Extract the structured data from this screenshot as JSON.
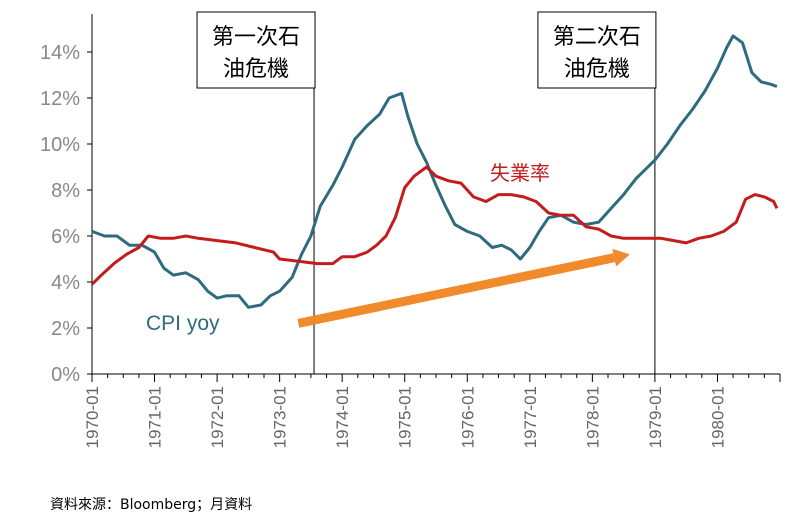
{
  "chart_data": {
    "type": "line",
    "ylim": [
      0,
      15
    ],
    "y_ticks": [
      "0%",
      "2%",
      "4%",
      "6%",
      "8%",
      "10%",
      "12%",
      "14%"
    ],
    "y_tick_values": [
      0,
      2,
      4,
      6,
      8,
      10,
      12,
      14
    ],
    "x_tick_labels": [
      "1970-01",
      "1971-01",
      "1972-01",
      "1973-01",
      "1974-01",
      "1975-01",
      "1976-01",
      "1977-01",
      "1978-01",
      "1979-01",
      "1980-01"
    ],
    "x_tick_values": [
      1970,
      1971,
      1972,
      1973,
      1974,
      1975,
      1976,
      1977,
      1978,
      1979,
      1980
    ],
    "xlim": [
      1970,
      1980.95
    ],
    "grid": false,
    "series": [
      {
        "name": "CPI yoy",
        "color": "#2e6b7e",
        "points": [
          [
            1970.0,
            6.2
          ],
          [
            1970.2,
            6.0
          ],
          [
            1970.4,
            6.0
          ],
          [
            1970.6,
            5.6
          ],
          [
            1970.8,
            5.6
          ],
          [
            1971.0,
            5.3
          ],
          [
            1971.15,
            4.6
          ],
          [
            1971.3,
            4.3
          ],
          [
            1971.5,
            4.4
          ],
          [
            1971.7,
            4.1
          ],
          [
            1971.85,
            3.6
          ],
          [
            1972.0,
            3.3
          ],
          [
            1972.15,
            3.4
          ],
          [
            1972.35,
            3.4
          ],
          [
            1972.5,
            2.9
          ],
          [
            1972.7,
            3.0
          ],
          [
            1972.85,
            3.4
          ],
          [
            1973.0,
            3.6
          ],
          [
            1973.2,
            4.2
          ],
          [
            1973.35,
            5.2
          ],
          [
            1973.5,
            6.0
          ],
          [
            1973.65,
            7.3
          ],
          [
            1973.85,
            8.2
          ],
          [
            1974.0,
            9.0
          ],
          [
            1974.2,
            10.2
          ],
          [
            1974.4,
            10.8
          ],
          [
            1974.6,
            11.3
          ],
          [
            1974.75,
            12.0
          ],
          [
            1974.95,
            12.2
          ],
          [
            1975.05,
            11.2
          ],
          [
            1975.2,
            10.0
          ],
          [
            1975.35,
            9.2
          ],
          [
            1975.5,
            8.2
          ],
          [
            1975.65,
            7.3
          ],
          [
            1975.8,
            6.5
          ],
          [
            1976.0,
            6.2
          ],
          [
            1976.2,
            6.0
          ],
          [
            1976.4,
            5.5
          ],
          [
            1976.55,
            5.6
          ],
          [
            1976.7,
            5.4
          ],
          [
            1976.85,
            5.0
          ],
          [
            1977.0,
            5.5
          ],
          [
            1977.15,
            6.2
          ],
          [
            1977.3,
            6.8
          ],
          [
            1977.5,
            6.9
          ],
          [
            1977.7,
            6.6
          ],
          [
            1977.9,
            6.5
          ],
          [
            1978.1,
            6.6
          ],
          [
            1978.3,
            7.2
          ],
          [
            1978.5,
            7.8
          ],
          [
            1978.7,
            8.5
          ],
          [
            1978.85,
            8.9
          ],
          [
            1979.0,
            9.3
          ],
          [
            1979.2,
            10.0
          ],
          [
            1979.4,
            10.8
          ],
          [
            1979.6,
            11.5
          ],
          [
            1979.8,
            12.3
          ],
          [
            1980.0,
            13.3
          ],
          [
            1980.15,
            14.2
          ],
          [
            1980.25,
            14.7
          ],
          [
            1980.4,
            14.4
          ],
          [
            1980.55,
            13.1
          ],
          [
            1980.7,
            12.7
          ],
          [
            1980.85,
            12.6
          ],
          [
            1980.95,
            12.5
          ]
        ]
      },
      {
        "name": "失業率",
        "color": "#c41c1c",
        "points": [
          [
            1970.0,
            3.9
          ],
          [
            1970.15,
            4.3
          ],
          [
            1970.35,
            4.8
          ],
          [
            1970.55,
            5.2
          ],
          [
            1970.75,
            5.5
          ],
          [
            1970.9,
            6.0
          ],
          [
            1971.1,
            5.9
          ],
          [
            1971.3,
            5.9
          ],
          [
            1971.5,
            6.0
          ],
          [
            1971.7,
            5.9
          ],
          [
            1972.0,
            5.8
          ],
          [
            1972.3,
            5.7
          ],
          [
            1972.6,
            5.5
          ],
          [
            1972.9,
            5.3
          ],
          [
            1973.0,
            5.0
          ],
          [
            1973.3,
            4.9
          ],
          [
            1973.6,
            4.8
          ],
          [
            1973.85,
            4.8
          ],
          [
            1974.0,
            5.1
          ],
          [
            1974.2,
            5.1
          ],
          [
            1974.4,
            5.3
          ],
          [
            1974.55,
            5.6
          ],
          [
            1974.7,
            6.0
          ],
          [
            1974.85,
            6.8
          ],
          [
            1975.0,
            8.1
          ],
          [
            1975.15,
            8.6
          ],
          [
            1975.35,
            9.0
          ],
          [
            1975.5,
            8.6
          ],
          [
            1975.7,
            8.4
          ],
          [
            1975.9,
            8.3
          ],
          [
            1976.1,
            7.7
          ],
          [
            1976.3,
            7.5
          ],
          [
            1976.5,
            7.8
          ],
          [
            1976.7,
            7.8
          ],
          [
            1976.9,
            7.7
          ],
          [
            1977.1,
            7.5
          ],
          [
            1977.3,
            7.0
          ],
          [
            1977.5,
            6.9
          ],
          [
            1977.7,
            6.9
          ],
          [
            1977.9,
            6.4
          ],
          [
            1978.1,
            6.3
          ],
          [
            1978.3,
            6.0
          ],
          [
            1978.5,
            5.9
          ],
          [
            1978.7,
            5.9
          ],
          [
            1978.9,
            5.9
          ],
          [
            1979.1,
            5.9
          ],
          [
            1979.3,
            5.8
          ],
          [
            1979.5,
            5.7
          ],
          [
            1979.7,
            5.9
          ],
          [
            1979.9,
            6.0
          ],
          [
            1980.1,
            6.2
          ],
          [
            1980.3,
            6.6
          ],
          [
            1980.45,
            7.6
          ],
          [
            1980.6,
            7.8
          ],
          [
            1980.75,
            7.7
          ],
          [
            1980.9,
            7.5
          ],
          [
            1980.95,
            7.2
          ]
        ]
      }
    ],
    "annotations": {
      "box1": {
        "line1": "第一次石",
        "line2": "油危機",
        "x": 1973.55
      },
      "box2": {
        "line1": "第二次石",
        "line2": "油危機",
        "x": 1979.0
      },
      "cpi_label": "CPI yoy",
      "unemp_label": "失業率",
      "arrow_color": "#f08a2a",
      "arrow_from": [
        1973.3,
        2.2
      ],
      "arrow_to": [
        1978.6,
        5.2
      ]
    }
  },
  "footer": "資料來源：Bloomberg；月資料"
}
